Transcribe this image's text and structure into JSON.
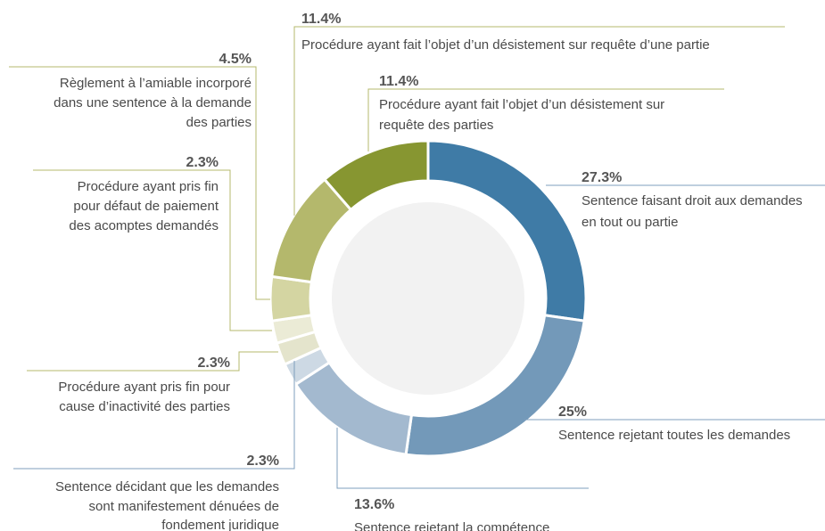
{
  "chart_data": {
    "type": "donut",
    "categories": [
      [
        "Sentence faisant droit aux demandes",
        "en tout ou partie"
      ],
      [
        "Sentence rejetant toutes les demandes"
      ],
      [
        "Sentence rejetant la compétence"
      ],
      [
        "Sentence décidant que les demandes",
        "sont manifestement dénuées de",
        "fondement juridique"
      ],
      [
        "Procédure ayant pris fin pour",
        "cause d’inactivité des parties"
      ],
      [
        "Procédure ayant pris fin",
        "pour défaut de paiement",
        "des acomptes demandés"
      ],
      [
        "Règlement à l’amiable incorporé",
        "dans une sentence à la demande",
        "des parties"
      ],
      [
        "Procédure ayant fait l’objet d’un désistement sur requête d’une partie"
      ],
      [
        "Procédure ayant fait l’objet d’un désistement sur",
        "requête des parties"
      ]
    ],
    "values": [
      27.3,
      25,
      13.6,
      2.3,
      2.3,
      2.3,
      4.5,
      11.4,
      11.4
    ],
    "value_labels": [
      "27.3%",
      "25%",
      "13.6%",
      "2.3%",
      "2.3%",
      "2.3%",
      "4.5%",
      "11.4%",
      "11.4%"
    ],
    "colors": [
      "#3f7ba6",
      "#7399b9",
      "#a3b9cf",
      "#cdd9e4",
      "#e4e4cc",
      "#ebebd6",
      "#d4d5a2",
      "#b4b86c",
      "#879631"
    ]
  }
}
